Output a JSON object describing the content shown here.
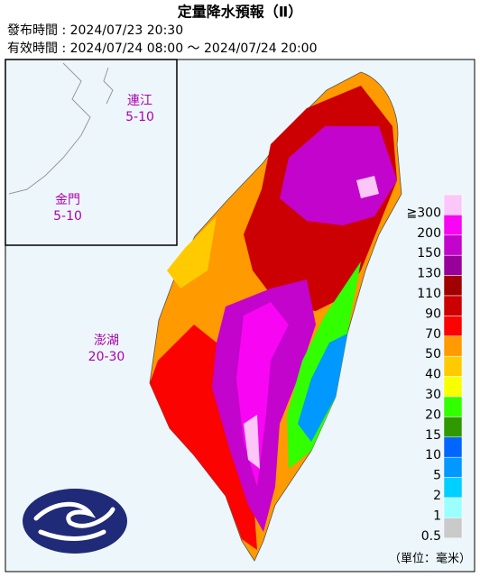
{
  "header": {
    "title": "定量降水預報（Ⅱ）",
    "issue_time": "發布時間 : 2024/07/23 20:30",
    "valid_time": "有效時間 : 2024/07/24 08:00 ～ 2024/07/24 20:00"
  },
  "regions": [
    {
      "name": "連江",
      "range": "5-10"
    },
    {
      "name": "金門",
      "range": "5-10"
    },
    {
      "name": "澎湖",
      "range": "20-30"
    }
  ],
  "legend": {
    "labels": [
      "≧300",
      "200",
      "150",
      "130",
      "110",
      "90",
      "70",
      "50",
      "40",
      "30",
      "20",
      "15",
      "10",
      "5",
      "2",
      "1",
      "0.5"
    ],
    "colors": [
      "#fbc7f9",
      "#f805f3",
      "#c304cc",
      "#98009a",
      "#a00000",
      "#cc0003",
      "#fa0300",
      "#ff9a00",
      "#ffcb00",
      "#f8ff00",
      "#32ff00",
      "#309901",
      "#0165ff",
      "#0198ff",
      "#00cfff",
      "#9bffff",
      "#cacaca"
    ]
  },
  "unit": "（單位：毫米）"
}
